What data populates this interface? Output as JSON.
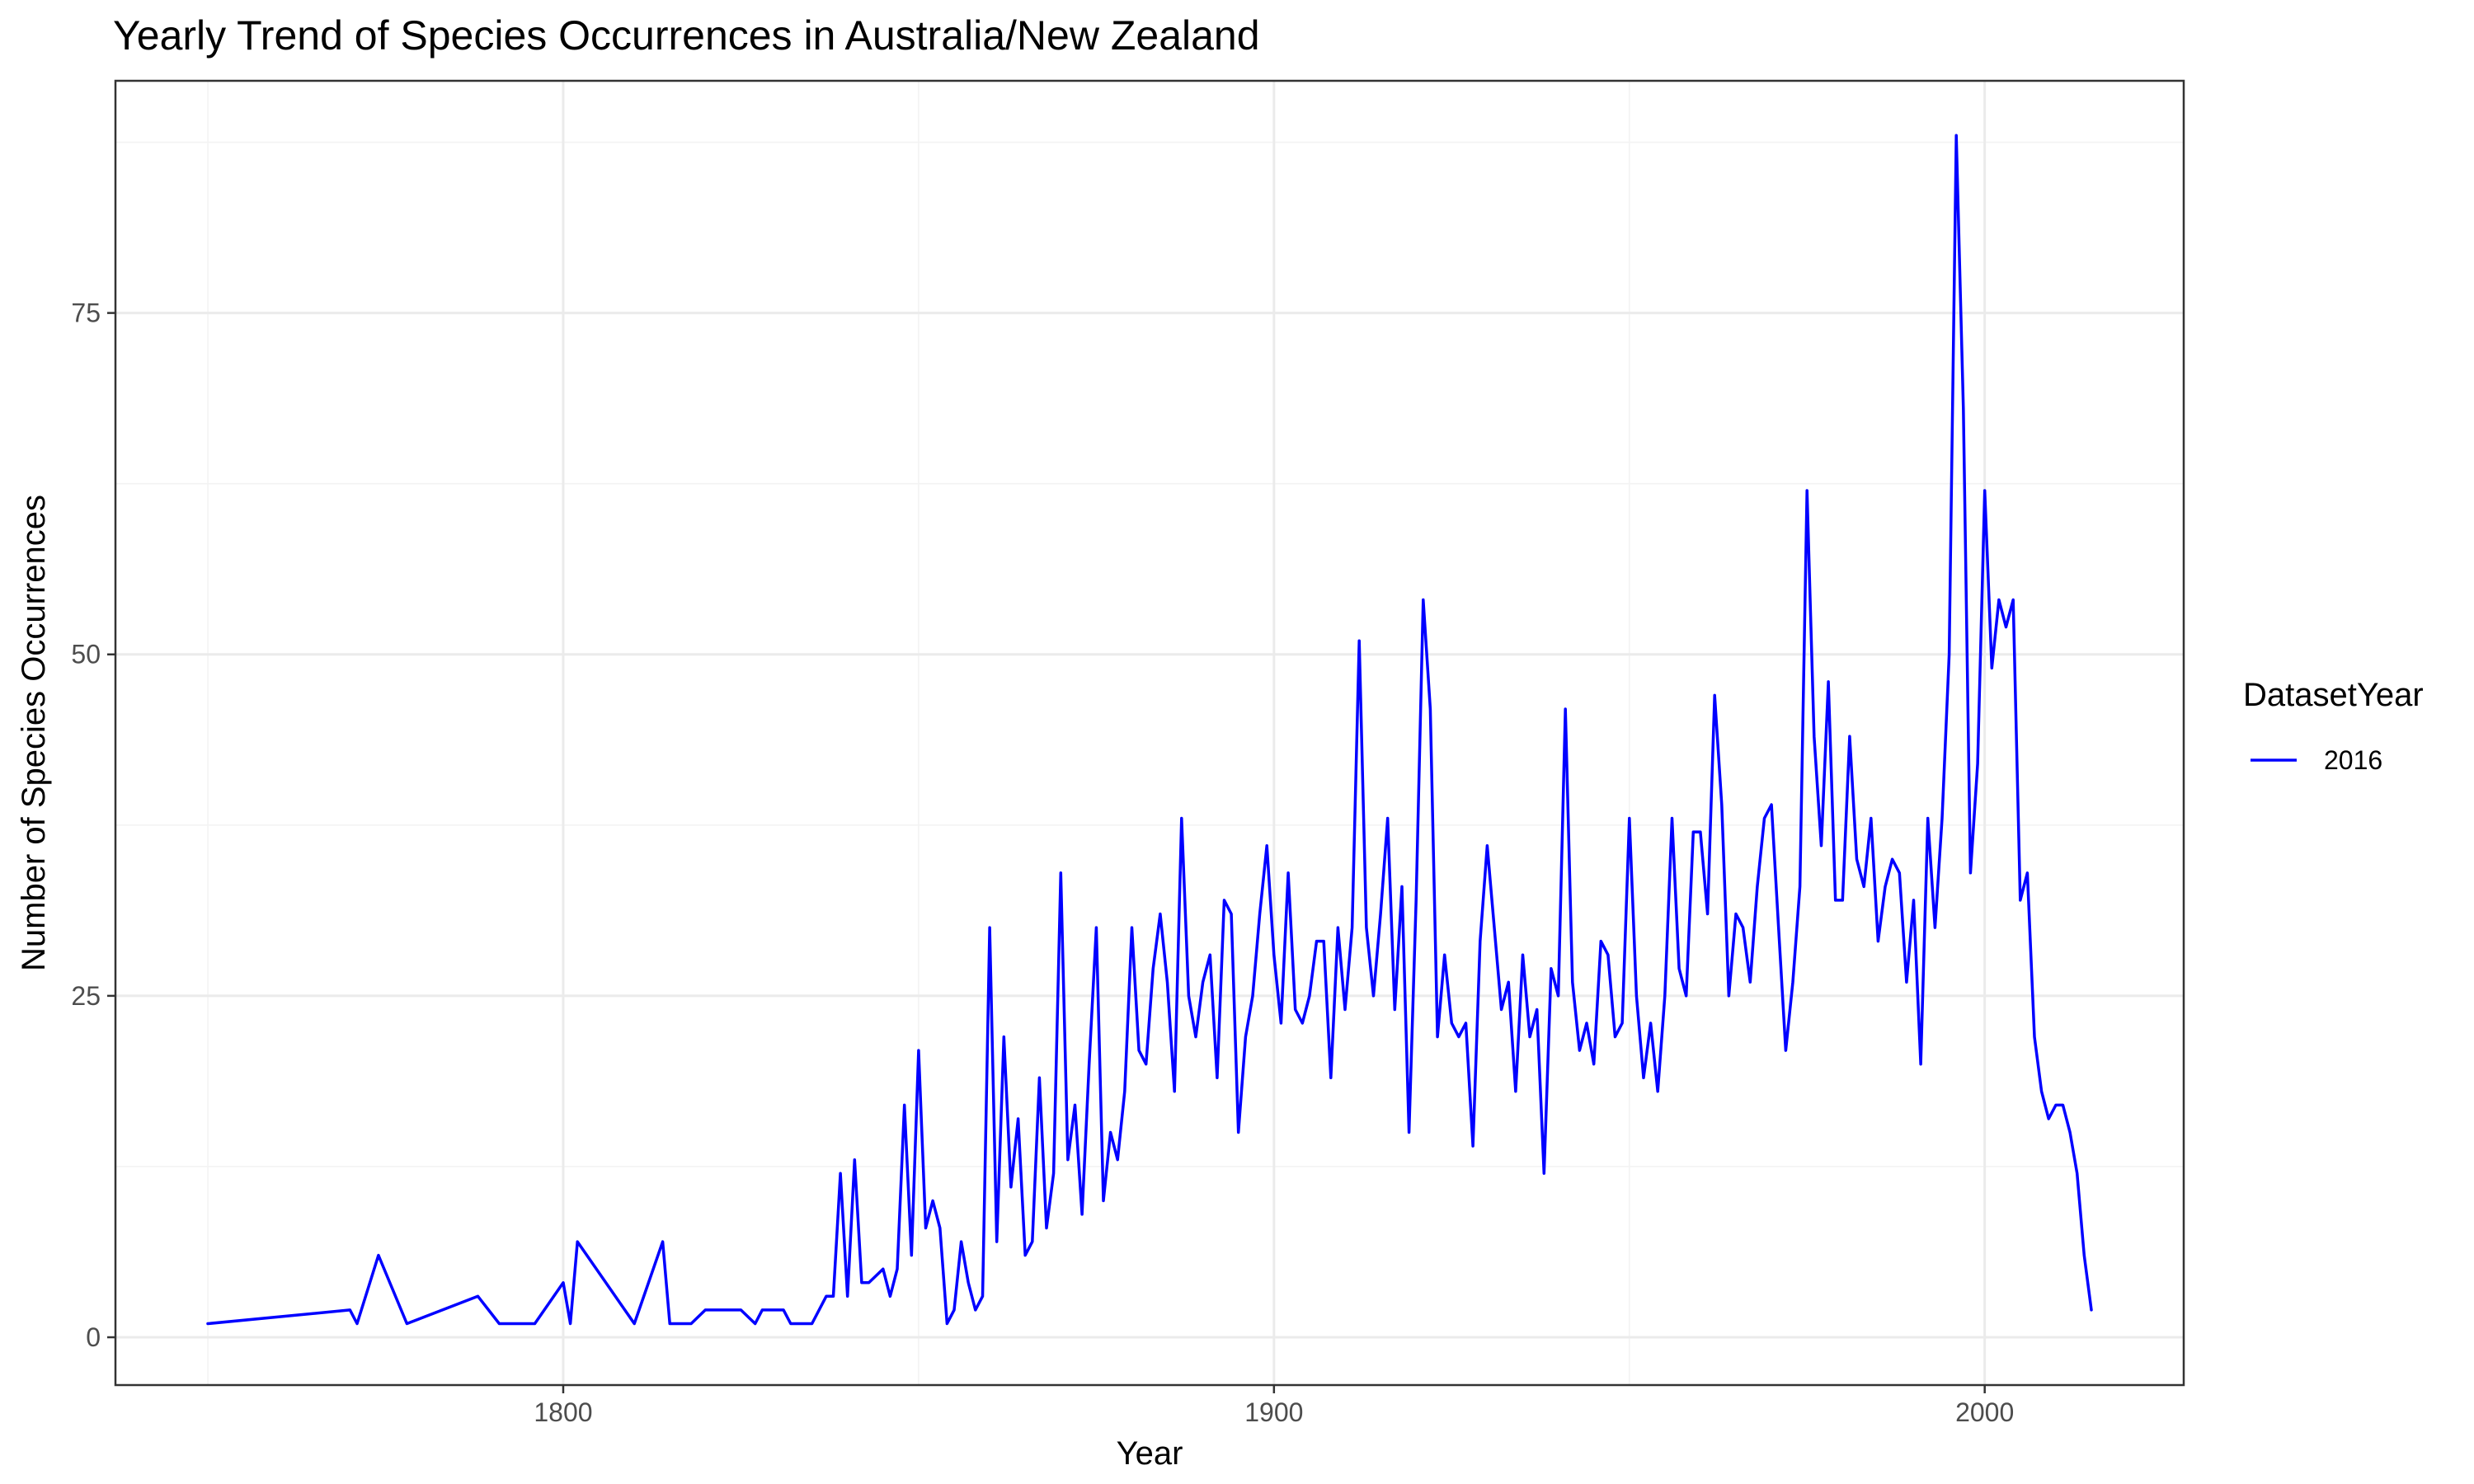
{
  "chart_data": {
    "type": "line",
    "title": "Yearly Trend of Species Occurrences in Australia/New Zealand",
    "xlabel": "Year",
    "ylabel": "Number of Species Occurrences",
    "xlim": [
      1737,
      2028
    ],
    "ylim": [
      -3.5,
      92
    ],
    "x_ticks": [
      1800,
      1900,
      2000
    ],
    "x_tick_labels": [
      "1800",
      "1900",
      "2000"
    ],
    "y_ticks": [
      0,
      25,
      50,
      75
    ],
    "y_tick_labels": [
      "0",
      "25",
      "50",
      "75"
    ],
    "grid": true,
    "legend": {
      "title": "DatasetYear",
      "position": "right"
    },
    "series": [
      {
        "name": "2016",
        "color": "#0000ff",
        "x": [
          1750,
          1770,
          1771,
          1774,
          1778,
          1788,
          1791,
          1796,
          1800,
          1801,
          1802,
          1810,
          1814,
          1815,
          1818,
          1820,
          1825,
          1827,
          1828,
          1829,
          1831,
          1832,
          1835,
          1837,
          1838,
          1839,
          1840,
          1841,
          1842,
          1843,
          1845,
          1846,
          1847,
          1848,
          1849,
          1850,
          1851,
          1852,
          1853,
          1854,
          1855,
          1856,
          1857,
          1858,
          1859,
          1860,
          1861,
          1862,
          1863,
          1864,
          1865,
          1866,
          1867,
          1868,
          1869,
          1870,
          1871,
          1872,
          1873,
          1874,
          1875,
          1876,
          1877,
          1878,
          1879,
          1880,
          1881,
          1882,
          1883,
          1884,
          1885,
          1886,
          1887,
          1888,
          1889,
          1890,
          1891,
          1892,
          1893,
          1894,
          1895,
          1896,
          1897,
          1898,
          1899,
          1900,
          1901,
          1902,
          1903,
          1904,
          1905,
          1906,
          1907,
          1908,
          1909,
          1910,
          1911,
          1912,
          1913,
          1914,
          1915,
          1916,
          1917,
          1918,
          1919,
          1920,
          1921,
          1922,
          1923,
          1924,
          1925,
          1926,
          1927,
          1928,
          1929,
          1930,
          1931,
          1932,
          1933,
          1934,
          1935,
          1936,
          1937,
          1938,
          1939,
          1940,
          1941,
          1942,
          1943,
          1944,
          1945,
          1946,
          1947,
          1948,
          1949,
          1950,
          1951,
          1952,
          1953,
          1954,
          1955,
          1956,
          1957,
          1958,
          1959,
          1960,
          1961,
          1962,
          1963,
          1964,
          1965,
          1966,
          1967,
          1968,
          1969,
          1970,
          1971,
          1972,
          1973,
          1974,
          1975,
          1976,
          1977,
          1978,
          1979,
          1980,
          1981,
          1982,
          1983,
          1984,
          1985,
          1986,
          1987,
          1988,
          1989,
          1990,
          1991,
          1992,
          1993,
          1994,
          1995,
          1996,
          1997,
          1998,
          1999,
          2000,
          2001,
          2002,
          2003,
          2004,
          2005,
          2006,
          2007,
          2008,
          2009,
          2010,
          2011,
          2012,
          2013,
          2014,
          2015
        ],
        "values": [
          1,
          2,
          1,
          6,
          1,
          3,
          1,
          1,
          4,
          1,
          7,
          1,
          7,
          1,
          1,
          2,
          2,
          1,
          2,
          2,
          2,
          1,
          1,
          3,
          3,
          12,
          3,
          13,
          4,
          4,
          5,
          3,
          5,
          17,
          6,
          21,
          8,
          10,
          8,
          1,
          2,
          7,
          4,
          2,
          3,
          30,
          7,
          22,
          11,
          16,
          6,
          7,
          19,
          8,
          12,
          34,
          13,
          17,
          9,
          20,
          30,
          10,
          15,
          13,
          18,
          30,
          21,
          20,
          27,
          31,
          26,
          18,
          38,
          25,
          22,
          26,
          28,
          19,
          32,
          31,
          15,
          22,
          25,
          31,
          36,
          28,
          23,
          34,
          24,
          23,
          25,
          29,
          29,
          19,
          30,
          24,
          30,
          51,
          30,
          25,
          31,
          38,
          24,
          33,
          15,
          32,
          54,
          46,
          22,
          28,
          23,
          22,
          23,
          14,
          29,
          36,
          30,
          24,
          26,
          18,
          28,
          22,
          24,
          12,
          27,
          25,
          46,
          26,
          21,
          23,
          20,
          29,
          28,
          22,
          23,
          38,
          25,
          19,
          23,
          18,
          25,
          38,
          27,
          25,
          37,
          37,
          31,
          47,
          39,
          25,
          31,
          30,
          26,
          33,
          38,
          39,
          30,
          21,
          26,
          33,
          62,
          44,
          36,
          48,
          32,
          32,
          44,
          35,
          33,
          38,
          29,
          33,
          35,
          34,
          26,
          32,
          20,
          38,
          30,
          38,
          50,
          88,
          68,
          34,
          42,
          62,
          49,
          54,
          52,
          54,
          32,
          34,
          22,
          18,
          16,
          17,
          17,
          15,
          12,
          6,
          2
        ]
      }
    ]
  }
}
